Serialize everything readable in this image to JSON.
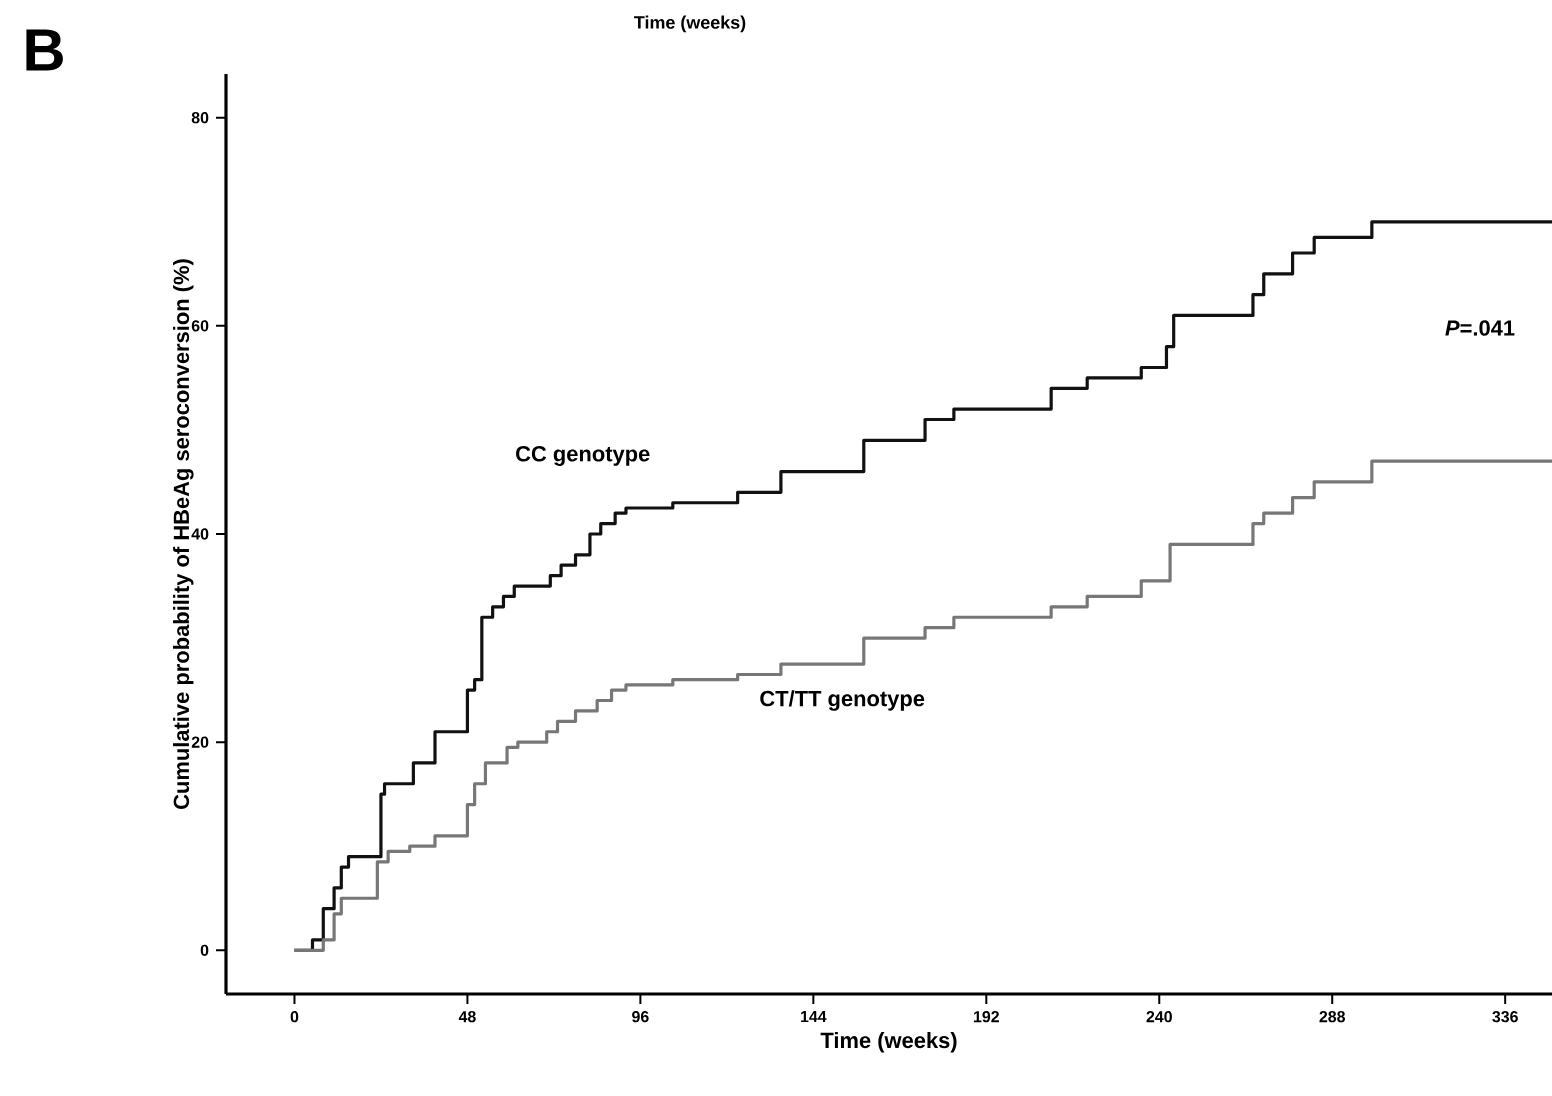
{
  "chart_data": {
    "type": "step",
    "xlabel": "Time (weeks)",
    "ylabel": "Cumulative probability of HBeAg seroconversion (%)",
    "annotations": [
      "B",
      "Time (weeks)",
      "*P*=.041"
    ],
    "xlim": [
      -19,
      349
    ],
    "ylim": [
      -4.2,
      84.2
    ],
    "xticks": [
      0,
      48,
      96,
      144,
      192,
      240,
      288,
      336
    ],
    "yticks": [
      0,
      20,
      40,
      60,
      80
    ],
    "grid": false,
    "legend": false,
    "marker": "none",
    "line_style": "solid",
    "series": [
      {
        "name": "CC genotype",
        "color": "#111111",
        "x": [
          0,
          5,
          8,
          11,
          13,
          15,
          24,
          25,
          33,
          39,
          48,
          50,
          52,
          55,
          58,
          61,
          71,
          74,
          78,
          82,
          85,
          89,
          92,
          105,
          123,
          135,
          158,
          175,
          183,
          210,
          220,
          235,
          242,
          244,
          266,
          269,
          277,
          283,
          299,
          349
        ],
        "values": [
          0,
          1,
          4,
          6,
          8,
          9,
          15,
          16,
          18,
          21,
          25,
          26,
          32,
          33,
          34,
          35,
          36,
          37,
          38,
          40,
          41,
          42,
          42.5,
          43,
          44,
          46,
          49,
          51,
          52,
          54,
          55,
          56,
          58,
          61,
          63,
          65,
          67,
          68.5,
          70,
          70
        ]
      },
      {
        "name": "CT/TT genotype",
        "color": "#777777",
        "x": [
          0,
          8,
          11,
          13,
          17,
          23,
          26,
          32,
          39,
          48,
          50,
          53,
          59,
          62,
          70,
          73,
          78,
          84,
          88,
          92,
          105,
          123,
          135,
          158,
          175,
          183,
          210,
          220,
          235,
          243,
          266,
          269,
          277,
          283,
          299,
          349
        ],
        "values": [
          0,
          1,
          3.5,
          5,
          5,
          8.5,
          9.5,
          10,
          11,
          14,
          16,
          18,
          19.5,
          20,
          21,
          22,
          23,
          24,
          25,
          25.5,
          26,
          26.5,
          27.5,
          30,
          31,
          32,
          33,
          34,
          35.5,
          39,
          41,
          42,
          43.5,
          45,
          47,
          47
        ]
      }
    ]
  }
}
